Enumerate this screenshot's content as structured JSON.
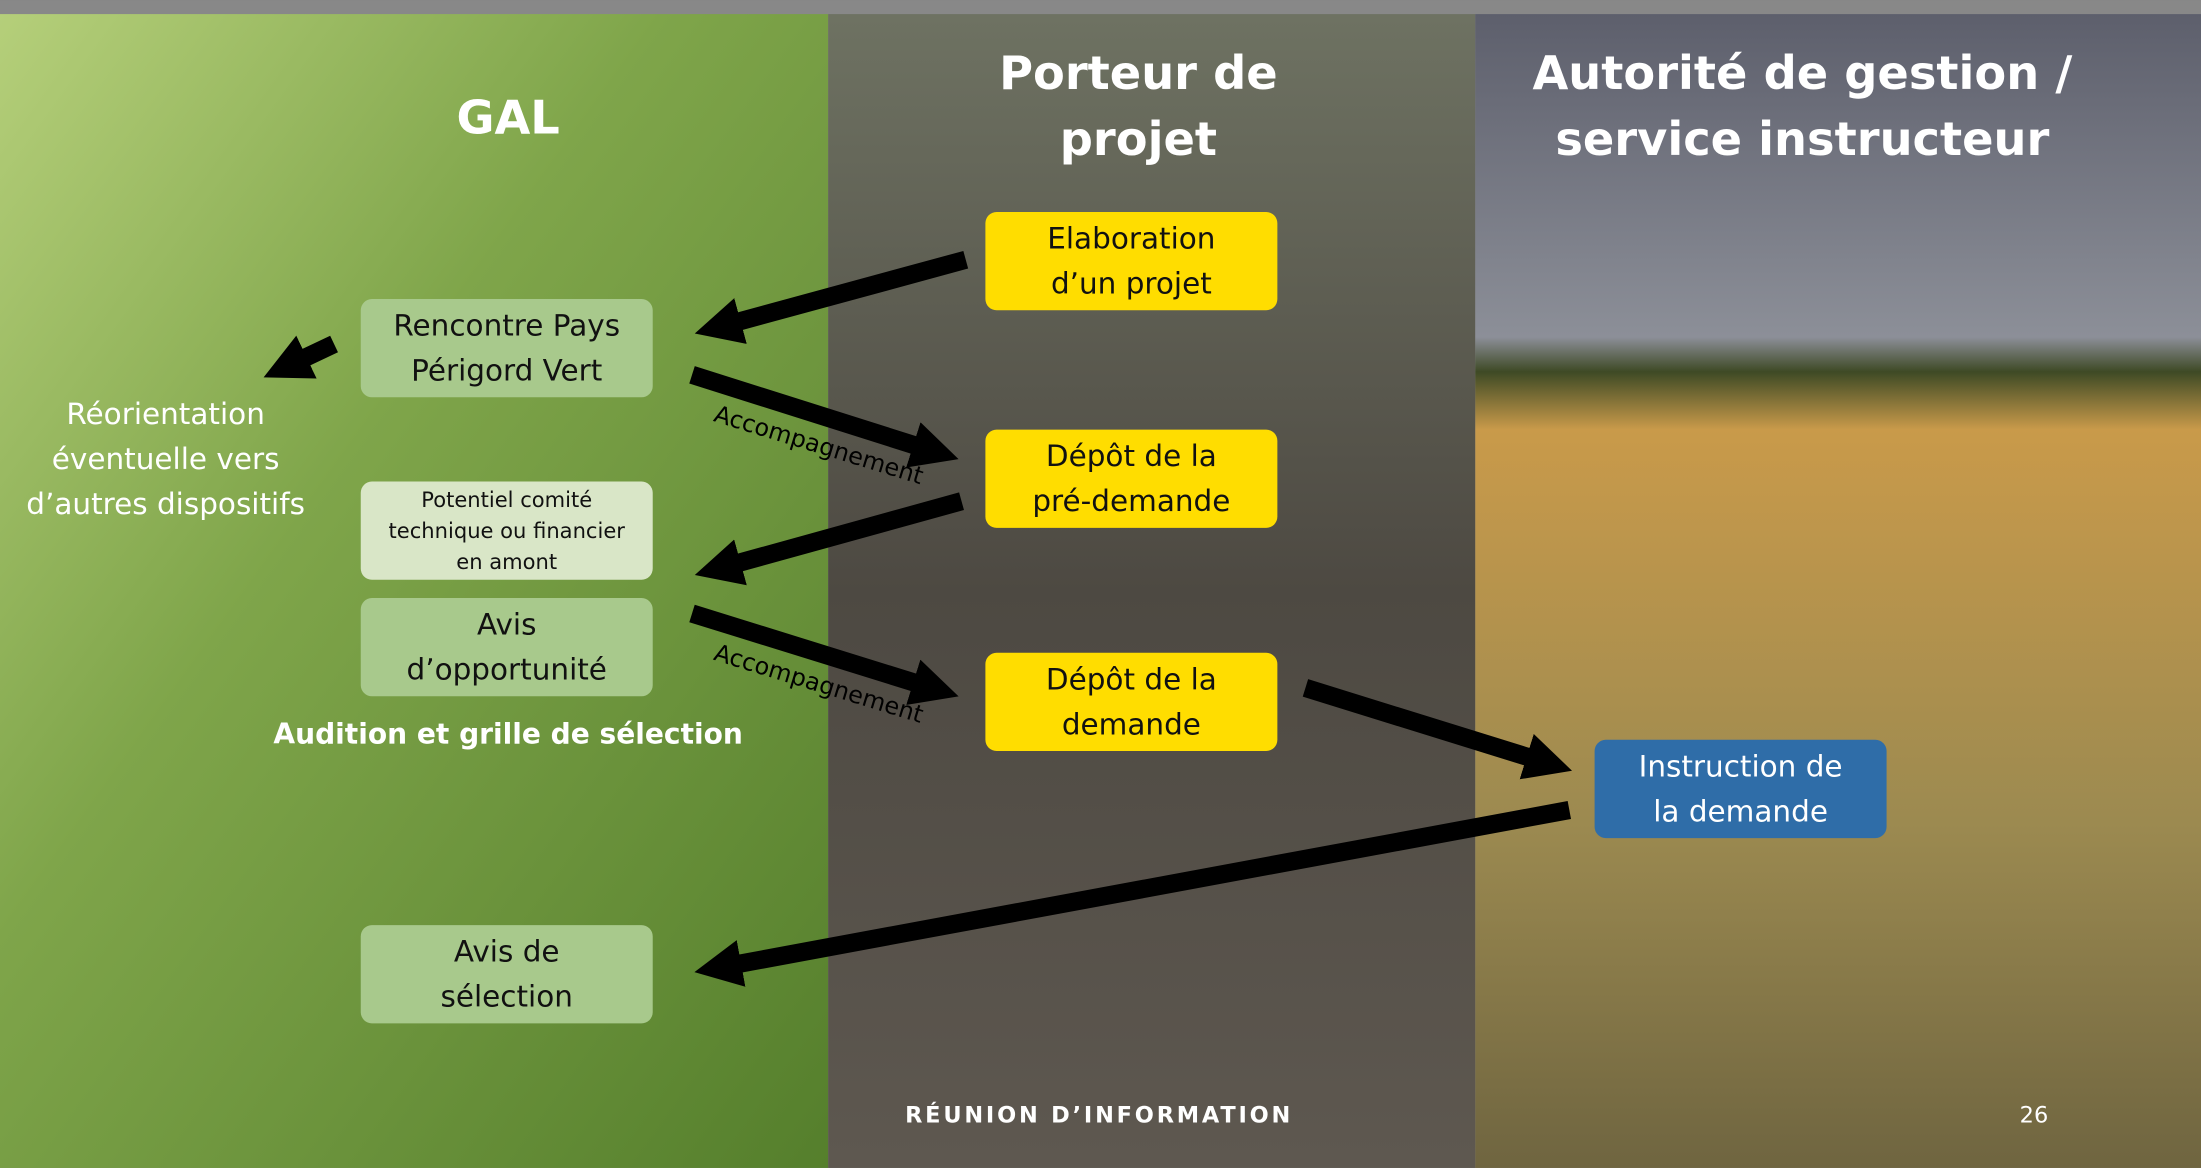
{
  "columns": [
    {
      "title_lines": [
        "GAL"
      ]
    },
    {
      "title_lines": [
        "Porteur de",
        "projet"
      ]
    },
    {
      "title_lines": [
        "Autorité de gestion /",
        "service instructeur"
      ]
    }
  ],
  "nodes": [
    {
      "lines": [
        "Rencontre Pays",
        "Périgord Vert"
      ]
    },
    {
      "lines": [
        "Potentiel comité",
        "technique ou financier",
        "en amont"
      ]
    },
    {
      "lines": [
        "Avis",
        "d’opportunité"
      ]
    },
    {
      "lines": [
        "Avis de",
        "sélection"
      ]
    },
    {
      "lines": [
        "Elaboration",
        "d’un projet"
      ]
    },
    {
      "lines": [
        "Dépôt de la",
        "pré-demande"
      ]
    },
    {
      "lines": [
        "Dépôt de la",
        "demande"
      ]
    },
    {
      "lines": [
        "Instruction de",
        "la demande"
      ]
    }
  ],
  "notes": [
    {
      "lines": [
        "Réorientation",
        "éventuelle vers",
        "d’autres dispositifs"
      ]
    },
    {
      "lines": [
        "Audition et grille de sélection"
      ]
    }
  ],
  "edge_labels": [
    "Accompagnement",
    "Accompagnement"
  ],
  "footer": {
    "title": "RÉUNION D’INFORMATION",
    "page": "26"
  }
}
